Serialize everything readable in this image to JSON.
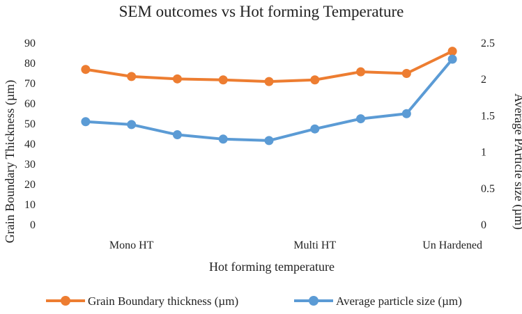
{
  "chart_data": {
    "type": "line",
    "title": "SEM outcomes vs Hot forming Temperature",
    "xlabel": "Hot forming temperature",
    "ylabel": "Grain Boundary Thickness (µm)",
    "y2label": "Average PArticle size (µm)",
    "x_tick_labels": [
      {
        "label": "Mono HT",
        "at": 2
      },
      {
        "label": "Multi HT",
        "at": 6
      },
      {
        "label": "Un Hardened",
        "at": 9
      }
    ],
    "x_points": [
      1,
      2,
      3,
      4,
      5,
      6,
      7,
      8,
      9
    ],
    "ylim": [
      0,
      90
    ],
    "y_ticks": [
      0,
      10,
      20,
      30,
      40,
      50,
      60,
      70,
      80,
      90
    ],
    "y_tick_labels": [
      "0",
      "10",
      "20",
      "30",
      "40",
      "50",
      "60",
      "70",
      "80",
      "90"
    ],
    "y2lim": [
      0,
      2.5
    ],
    "y2_ticks": [
      0,
      0.5,
      1,
      1.5,
      2,
      2.5
    ],
    "y2_tick_labels": [
      "0",
      "0.5",
      "1",
      "1.5",
      "2",
      "2.5"
    ],
    "grid": false,
    "legend_position": "bottom",
    "series": [
      {
        "name": "Grain Boundary thickness (µm)",
        "axis": "left",
        "color": "#ED7D31",
        "values": [
          77,
          73.5,
          72.3,
          71.8,
          71,
          71.8,
          75.8,
          75,
          86
        ]
      },
      {
        "name": "Average particle size (µm)",
        "axis": "right",
        "color": "#5B9BD5",
        "values": [
          1.42,
          1.38,
          1.24,
          1.18,
          1.16,
          1.32,
          1.46,
          1.53,
          2.28
        ]
      }
    ]
  }
}
